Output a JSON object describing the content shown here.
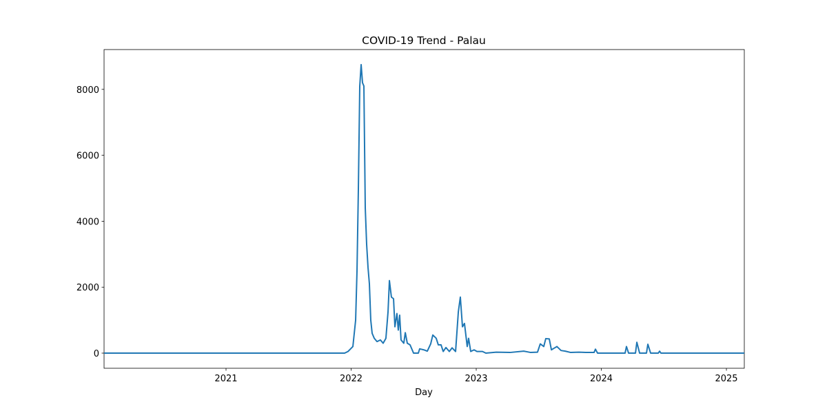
{
  "chart_data": {
    "type": "line",
    "title": "COVID-19 Trend - Palau",
    "xlabel": "Day",
    "x": [
      2020.025,
      2021.617,
      2021.948,
      2021.975,
      2022.014,
      2022.036,
      2022.047,
      2022.058,
      2022.069,
      2022.08,
      2022.091,
      2022.102,
      2022.113,
      2022.124,
      2022.135,
      2022.146,
      2022.157,
      2022.168,
      2022.185,
      2022.207,
      2022.234,
      2022.256,
      2022.278,
      2022.295,
      2022.306,
      2022.322,
      2022.339,
      2022.35,
      2022.366,
      2022.377,
      2022.388,
      2022.399,
      2022.421,
      2022.433,
      2022.449,
      2022.471,
      2022.488,
      2022.499,
      2022.537,
      2022.548,
      2022.581,
      2022.609,
      2022.636,
      2022.653,
      2022.68,
      2022.697,
      2022.719,
      2022.736,
      2022.758,
      2022.785,
      2022.807,
      2022.835,
      2022.857,
      2022.873,
      2022.89,
      2022.906,
      2022.928,
      2022.939,
      2022.956,
      2022.983,
      2023.006,
      2023.05,
      2023.077,
      2023.16,
      2023.27,
      2023.38,
      2023.435,
      2023.49,
      2023.512,
      2023.54,
      2023.556,
      2023.584,
      2023.601,
      2023.645,
      2023.678,
      2023.711,
      2023.755,
      2023.821,
      2023.876,
      2023.942,
      2023.953,
      2023.97,
      2024.19,
      2024.201,
      2024.218,
      2024.273,
      2024.284,
      2024.306,
      2024.361,
      2024.372,
      2024.394,
      2024.455,
      2024.466,
      2024.477,
      2025.143
    ],
    "series": [
      {
        "name": "Palau",
        "color": "#1f77b4",
        "values": [
          0,
          0,
          0,
          50,
          200,
          1000,
          2500,
          5000,
          8100,
          8750,
          8200,
          8100,
          4400,
          3300,
          2600,
          2100,
          1000,
          600,
          450,
          350,
          400,
          300,
          450,
          1250,
          2200,
          1700,
          1650,
          800,
          1200,
          700,
          1150,
          400,
          300,
          620,
          300,
          250,
          100,
          0,
          0,
          130,
          100,
          60,
          280,
          550,
          450,
          250,
          250,
          50,
          170,
          50,
          160,
          50,
          1250,
          1700,
          800,
          900,
          200,
          450,
          50,
          100,
          50,
          50,
          0,
          30,
          20,
          60,
          20,
          30,
          280,
          200,
          440,
          430,
          100,
          200,
          80,
          60,
          20,
          30,
          20,
          20,
          120,
          0,
          0,
          200,
          0,
          0,
          330,
          0,
          0,
          270,
          0,
          0,
          60,
          0,
          0
        ]
      }
    ],
    "xlim": [
      2020.025,
      2025.143
    ],
    "xticks": [
      2021,
      2022,
      2023,
      2024,
      2025
    ],
    "ylim": [
      -459,
      9207
    ],
    "yticks": [
      0,
      2000,
      4000,
      6000,
      8000
    ]
  }
}
